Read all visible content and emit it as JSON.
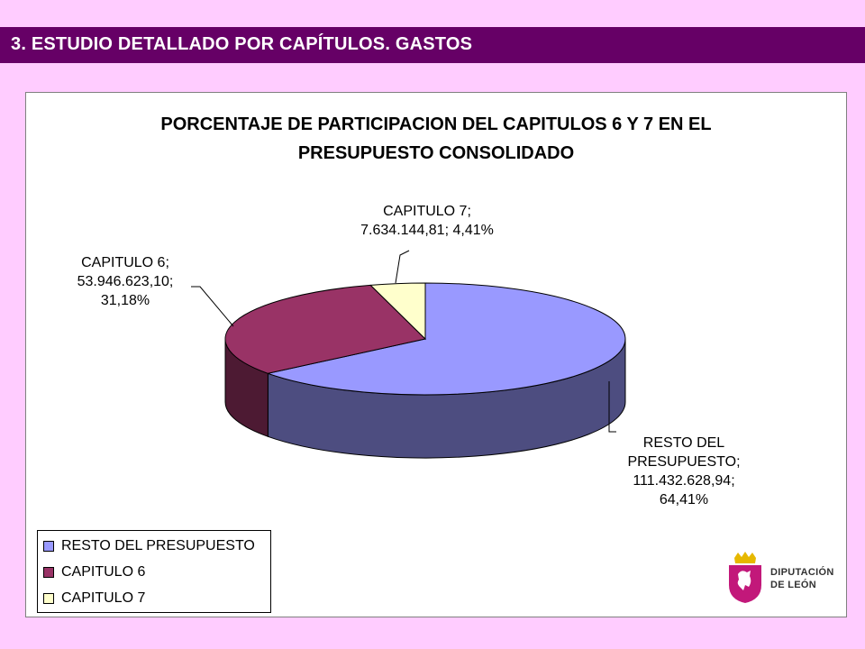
{
  "header": {
    "title": "3. ESTUDIO DETALLADO POR CAPÍTULOS. GASTOS"
  },
  "chart_data": {
    "type": "pie",
    "title_lines": [
      "PORCENTAJE DE PARTICIPACION DEL CAPITULOS 6 Y 7 EN EL",
      "PRESUPUESTO CONSOLIDADO"
    ],
    "series": [
      {
        "name": "RESTO DEL PRESUPUESTO",
        "value": 111432628.94,
        "percent": 64.41,
        "color": "#9999ff",
        "side_color": "#4d4d80"
      },
      {
        "name": "CAPITULO 6",
        "value": 53946623.1,
        "percent": 31.18,
        "color": "#993366",
        "side_color": "#4d1a33"
      },
      {
        "name": "CAPITULO 7",
        "value": 7634144.81,
        "percent": 4.41,
        "color": "#ffffcc",
        "side_color": "#80806a"
      }
    ],
    "data_labels": [
      {
        "lines": [
          "RESTO DEL",
          "PRESUPUESTO;",
          "111.432.628,94;",
          "64,41%"
        ]
      },
      {
        "lines": [
          "CAPITULO 6;",
          "53.946.623,10;",
          "31,18%"
        ]
      },
      {
        "lines": [
          "CAPITULO 7;",
          "7.634.144,81; 4,41%"
        ]
      }
    ],
    "legend": {
      "placement": "bottom-left",
      "items": [
        "RESTO DEL PRESUPUESTO",
        "CAPITULO 6",
        "CAPITULO 7"
      ]
    }
  },
  "logo": {
    "line1": "DIPUTACIÓN",
    "line2": "DE LEÓN"
  }
}
